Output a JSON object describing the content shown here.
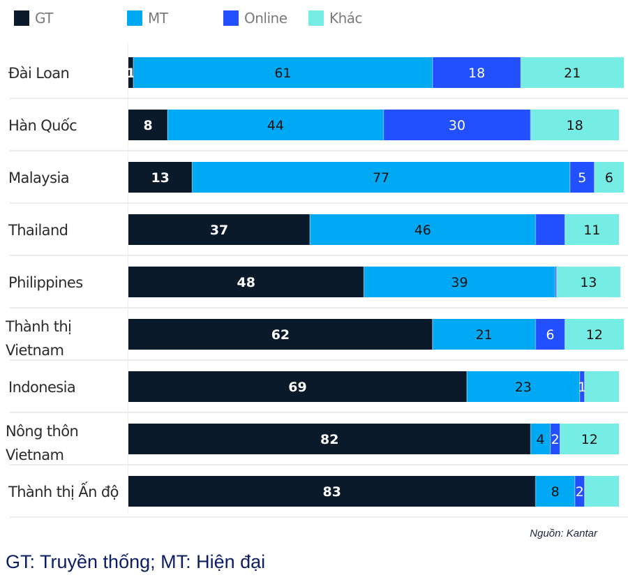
{
  "legend": [
    {
      "label": "GT",
      "color": "#0a1a2a"
    },
    {
      "label": "MT",
      "color": "#00a9f4"
    },
    {
      "label": "Online",
      "color": "#2350ff"
    },
    {
      "label": "Khác",
      "color": "#76ede4"
    }
  ],
  "source": "Nguồn: Kantar",
  "footnote": "GT: Truyền thống; MT: Hiện đại",
  "chart_data": {
    "type": "bar",
    "orientation": "horizontal",
    "stacked": true,
    "title": "",
    "xlabel": "",
    "ylabel": "",
    "xlim": [
      0,
      100
    ],
    "grid": false,
    "legend_position": "top-left",
    "categories": [
      [
        "Đài Loan"
      ],
      [
        "Hàn Quốc"
      ],
      [
        "Malaysia"
      ],
      [
        "Thailand"
      ],
      [
        "Philippines"
      ],
      [
        "Thành thị",
        "Vietnam"
      ],
      [
        "Indonesia"
      ],
      [
        "Nông thôn",
        "Vietnam"
      ],
      [
        "Thành thị Ấn độ"
      ]
    ],
    "series": [
      {
        "name": "GT",
        "color": "#0a1a2a",
        "label_color": "#ffffff",
        "values": [
          1,
          8,
          13,
          37,
          48,
          62,
          69,
          82,
          83
        ],
        "labels": [
          "1",
          "8",
          "13",
          "37",
          "48",
          "62",
          "69",
          "82",
          "83"
        ]
      },
      {
        "name": "MT",
        "color": "#00a9f4",
        "label_color": "#111111",
        "values": [
          61,
          44,
          77,
          46,
          39,
          21,
          23,
          4,
          8
        ],
        "labels": [
          "61",
          "44",
          "77",
          "46",
          "39",
          "21",
          "23",
          "4",
          "8"
        ]
      },
      {
        "name": "Online",
        "color": "#2350ff",
        "label_color": "#ffffff",
        "values": [
          18,
          30,
          5,
          6,
          0.3,
          6,
          1,
          2,
          2
        ],
        "labels": [
          "18",
          "30",
          "5",
          "",
          "",
          "6",
          "1",
          "2",
          "2"
        ]
      },
      {
        "name": "Khác",
        "color": "#76ede4",
        "label_color": "#111111",
        "values": [
          21,
          18,
          6,
          11,
          13,
          12,
          7,
          12,
          7
        ],
        "labels": [
          "21",
          "18",
          "6",
          "11",
          "13",
          "12",
          "",
          "12",
          ""
        ]
      }
    ]
  }
}
